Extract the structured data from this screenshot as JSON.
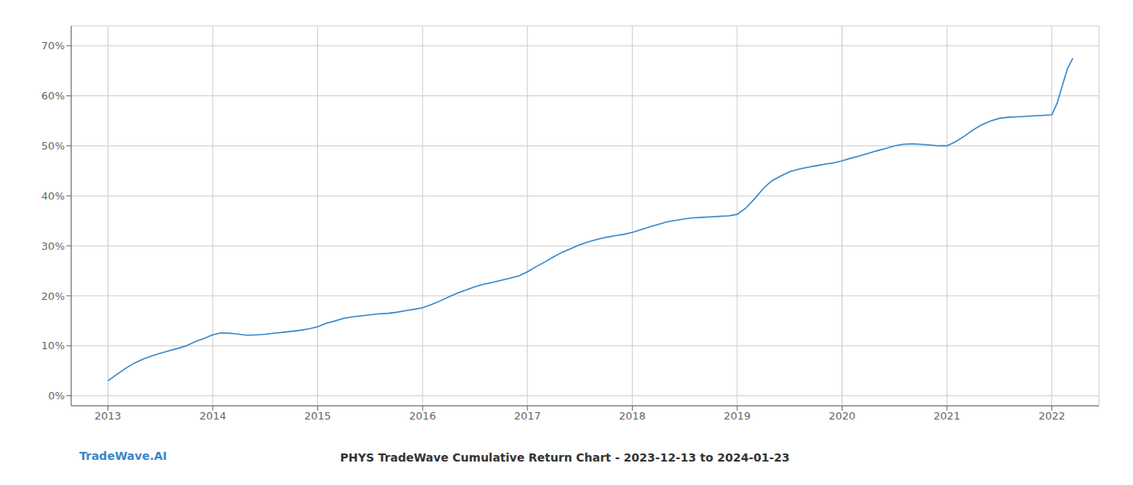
{
  "chart_data": {
    "type": "line",
    "title": "PHYS TradeWave Cumulative Return Chart - 2023-12-13 to 2024-01-23",
    "annotations": [
      {
        "text": "TradeWave.AI",
        "color": "#3a87c8"
      }
    ],
    "color": "#3a87c8",
    "grid": true,
    "xlim": [
      2012.65,
      2022.45
    ],
    "xticks": [
      2013,
      2014,
      2015,
      2016,
      2017,
      2018,
      2019,
      2020,
      2021,
      2022
    ],
    "ylim": [
      -2,
      74
    ],
    "yticks": [
      {
        "value": 0,
        "label": "0%"
      },
      {
        "value": 10,
        "label": "10%"
      },
      {
        "value": 20,
        "label": "20%"
      },
      {
        "value": 30,
        "label": "30%"
      },
      {
        "value": 40,
        "label": "40%"
      },
      {
        "value": 50,
        "label": "50%"
      },
      {
        "value": 60,
        "label": "60%"
      },
      {
        "value": 70,
        "label": "70%"
      }
    ],
    "x": [
      2013.0,
      2013.08,
      2013.17,
      2013.25,
      2013.33,
      2013.42,
      2013.5,
      2013.58,
      2013.67,
      2013.75,
      2013.83,
      2013.92,
      2014.0,
      2014.08,
      2014.17,
      2014.25,
      2014.33,
      2014.42,
      2014.5,
      2014.58,
      2014.67,
      2014.75,
      2014.83,
      2014.92,
      2015.0,
      2015.08,
      2015.17,
      2015.25,
      2015.33,
      2015.42,
      2015.5,
      2015.58,
      2015.67,
      2015.75,
      2015.83,
      2015.92,
      2016.0,
      2016.08,
      2016.17,
      2016.25,
      2016.33,
      2016.42,
      2016.5,
      2016.58,
      2016.67,
      2016.75,
      2016.83,
      2016.92,
      2017.0,
      2017.08,
      2017.17,
      2017.25,
      2017.33,
      2017.42,
      2017.5,
      2017.58,
      2017.67,
      2017.75,
      2017.83,
      2017.92,
      2018.0,
      2018.08,
      2018.17,
      2018.25,
      2018.33,
      2018.42,
      2018.5,
      2018.58,
      2018.67,
      2018.75,
      2018.83,
      2018.92,
      2019.0,
      2019.08,
      2019.17,
      2019.25,
      2019.33,
      2019.42,
      2019.5,
      2019.58,
      2019.67,
      2019.75,
      2019.83,
      2019.92,
      2020.0,
      2020.08,
      2020.17,
      2020.25,
      2020.33,
      2020.42,
      2020.5,
      2020.58,
      2020.67,
      2020.75,
      2020.83,
      2020.92,
      2021.0,
      2021.08,
      2021.17,
      2021.25,
      2021.33,
      2021.42,
      2021.5,
      2021.58,
      2021.67,
      2021.75,
      2021.83,
      2021.92,
      2022.0,
      2022.05,
      2022.1,
      2022.15,
      2022.2
    ],
    "values": [
      3.0,
      4.2,
      5.5,
      6.5,
      7.3,
      8.0,
      8.5,
      9.0,
      9.5,
      10.0,
      10.8,
      11.5,
      12.2,
      12.6,
      12.5,
      12.3,
      12.1,
      12.2,
      12.3,
      12.5,
      12.7,
      12.9,
      13.1,
      13.4,
      13.8,
      14.5,
      15.0,
      15.5,
      15.8,
      16.0,
      16.2,
      16.4,
      16.5,
      16.7,
      17.0,
      17.3,
      17.6,
      18.2,
      19.0,
      19.8,
      20.5,
      21.2,
      21.8,
      22.3,
      22.7,
      23.1,
      23.5,
      24.0,
      24.8,
      25.8,
      26.8,
      27.8,
      28.7,
      29.5,
      30.2,
      30.8,
      31.3,
      31.7,
      32.0,
      32.3,
      32.7,
      33.2,
      33.8,
      34.3,
      34.8,
      35.1,
      35.4,
      35.6,
      35.7,
      35.8,
      35.9,
      36.0,
      36.3,
      37.5,
      39.5,
      41.5,
      43.0,
      44.0,
      44.8,
      45.3,
      45.7,
      46.0,
      46.3,
      46.6,
      47.0,
      47.5,
      48.0,
      48.5,
      49.0,
      49.5,
      50.0,
      50.3,
      50.4,
      50.3,
      50.2,
      50.0,
      50.0,
      50.8,
      52.0,
      53.2,
      54.2,
      55.0,
      55.5,
      55.7,
      55.8,
      55.9,
      56.0,
      56.1,
      56.2,
      58.5,
      62.0,
      65.5,
      67.5
    ]
  }
}
